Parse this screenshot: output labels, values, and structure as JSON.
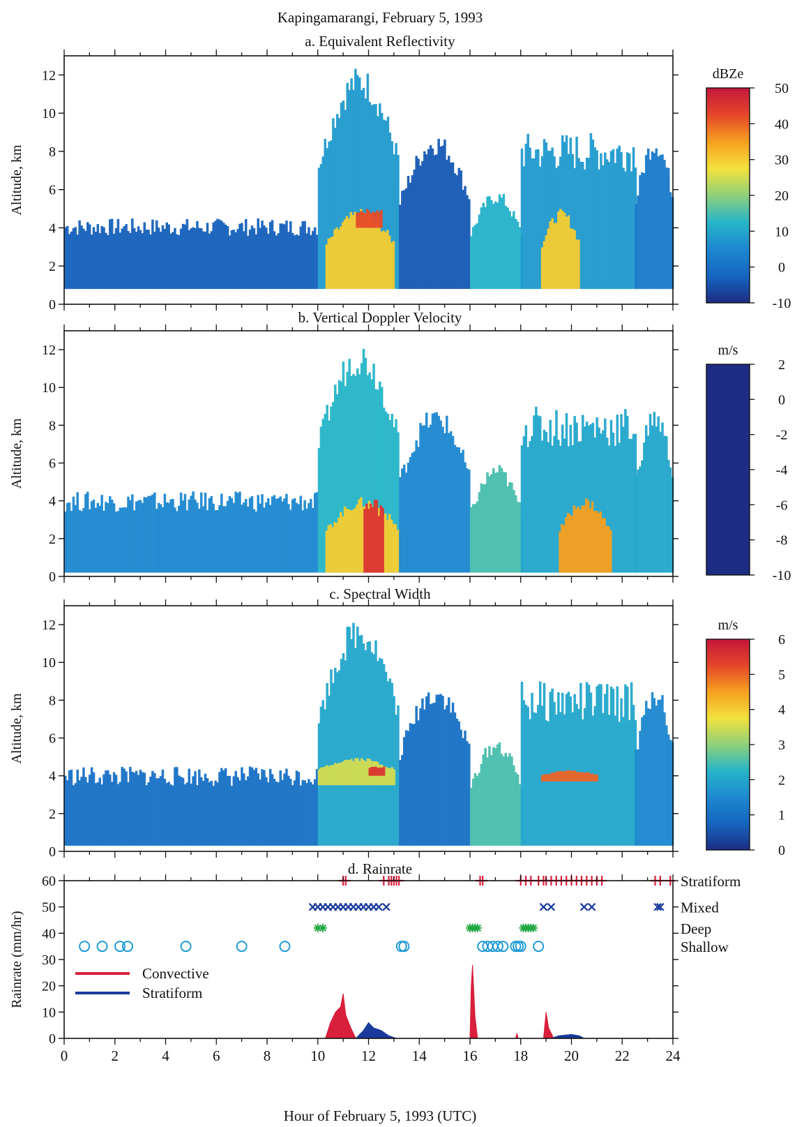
{
  "figure": {
    "title": "Kapingamarangi, February 5, 1993",
    "xlabel": "Hour of February 5, 1993 (UTC)",
    "x_ticks": [
      0,
      2,
      4,
      6,
      8,
      10,
      12,
      14,
      16,
      18,
      20,
      22,
      24
    ],
    "xlim": [
      0,
      24
    ]
  },
  "colors": {
    "convective": "#d81f3b",
    "stratiform": "#1a3a9c",
    "deep": "#22a845",
    "shallow": "#1e9ad6",
    "colormap": [
      "#1d2d84",
      "#1565c0",
      "#1e88d0",
      "#26b5c8",
      "#8fd07a",
      "#f3e23c",
      "#f6a020",
      "#e5462a",
      "#c4163c"
    ]
  },
  "chart_data": [
    {
      "type": "heatmap",
      "title": "a. Equivalent Reflectivity",
      "ylabel": "Altitude, km",
      "y_ticks": [
        0,
        2,
        4,
        6,
        8,
        10,
        12
      ],
      "ylim": [
        0,
        13
      ],
      "xlim": [
        0,
        24
      ],
      "colorbar": {
        "label": "dBZe",
        "min": -10,
        "max": 50,
        "ticks": [
          -10,
          0,
          10,
          20,
          30,
          40,
          50
        ]
      },
      "echo_regions": [
        {
          "x": [
            0,
            10
          ],
          "y": [
            0.8,
            4.5
          ],
          "value": -3
        },
        {
          "x": [
            10,
            13.2
          ],
          "y": [
            0.8,
            12.5
          ],
          "value": 8
        },
        {
          "x": [
            10.3,
            13
          ],
          "y": [
            0.8,
            5
          ],
          "value": 30
        },
        {
          "x": [
            11.5,
            12.5
          ],
          "y": [
            4,
            5
          ],
          "value": 42
        },
        {
          "x": [
            13.2,
            16
          ],
          "y": [
            0.8,
            9
          ],
          "value": -4
        },
        {
          "x": [
            16,
            18
          ],
          "y": [
            0.8,
            6
          ],
          "value": 12
        },
        {
          "x": [
            18,
            22.5
          ],
          "y": [
            0.8,
            9
          ],
          "value": 8
        },
        {
          "x": [
            18.8,
            20.3
          ],
          "y": [
            0.8,
            5
          ],
          "value": 30
        },
        {
          "x": [
            22.5,
            24
          ],
          "y": [
            0.8,
            9
          ],
          "value": 2
        }
      ]
    },
    {
      "type": "heatmap",
      "title": "b. Vertical Doppler Velocity",
      "ylabel": "Altitude, km",
      "y_ticks": [
        0,
        2,
        4,
        6,
        8,
        10,
        12
      ],
      "ylim": [
        0,
        13
      ],
      "xlim": [
        0,
        24
      ],
      "colorbar": {
        "label": "m/s",
        "min": -10,
        "max": 2,
        "ticks": [
          2,
          0,
          -2,
          -4,
          -6,
          -8,
          -10
        ]
      },
      "echo_regions": [
        {
          "x": [
            0,
            10
          ],
          "y": [
            0.2,
            4.5
          ],
          "value": -1
        },
        {
          "x": [
            10,
            13.2
          ],
          "y": [
            0.2,
            12.5
          ],
          "value": -2.5
        },
        {
          "x": [
            10.3,
            13.2
          ],
          "y": [
            0.2,
            4.2
          ],
          "value": -6
        },
        {
          "x": [
            11.8,
            12.6
          ],
          "y": [
            0.2,
            4.2
          ],
          "value": -9
        },
        {
          "x": [
            13.2,
            16
          ],
          "y": [
            0.2,
            9
          ],
          "value": -1
        },
        {
          "x": [
            16,
            18
          ],
          "y": [
            0.2,
            6
          ],
          "value": -3
        },
        {
          "x": [
            18,
            22.5
          ],
          "y": [
            0.2,
            9
          ],
          "value": -2
        },
        {
          "x": [
            19.5,
            21.5
          ],
          "y": [
            0.2,
            4.2
          ],
          "value": -7
        },
        {
          "x": [
            22.5,
            24
          ],
          "y": [
            0.2,
            9
          ],
          "value": -2
        }
      ]
    },
    {
      "type": "heatmap",
      "title": "c. Spectral Width",
      "ylabel": "Altitude, km",
      "y_ticks": [
        0,
        2,
        4,
        6,
        8,
        10,
        12
      ],
      "ylim": [
        0,
        13
      ],
      "xlim": [
        0,
        24
      ],
      "colorbar": {
        "label": "m/s",
        "min": 0,
        "max": 6,
        "ticks": [
          0,
          1,
          2,
          3,
          4,
          5,
          6
        ]
      },
      "echo_regions": [
        {
          "x": [
            0,
            10
          ],
          "y": [
            0.3,
            4.5
          ],
          "value": 1
        },
        {
          "x": [
            10,
            13.2
          ],
          "y": [
            0.3,
            12.5
          ],
          "value": 2
        },
        {
          "x": [
            10,
            13
          ],
          "y": [
            3.5,
            5
          ],
          "value": 3.5
        },
        {
          "x": [
            12,
            12.6
          ],
          "y": [
            4,
            4.5
          ],
          "value": 5.5
        },
        {
          "x": [
            13.2,
            16
          ],
          "y": [
            0.3,
            9
          ],
          "value": 1
        },
        {
          "x": [
            16,
            18
          ],
          "y": [
            0.3,
            6
          ],
          "value": 2.5
        },
        {
          "x": [
            18,
            22.5
          ],
          "y": [
            0.3,
            9
          ],
          "value": 2
        },
        {
          "x": [
            18.8,
            21
          ],
          "y": [
            3.7,
            4.3
          ],
          "value": 5
        },
        {
          "x": [
            22.5,
            24
          ],
          "y": [
            0.3,
            9
          ],
          "value": 1.5
        }
      ]
    },
    {
      "type": "area",
      "title": "d. Rainrate",
      "ylabel": "Rainrate (mm/hr)",
      "y_ticks": [
        0,
        10,
        20,
        30,
        40,
        50,
        60
      ],
      "ylim": [
        0,
        60
      ],
      "xlim": [
        0,
        24
      ],
      "legend": {
        "placement": "lower-left",
        "entries": [
          "Convective",
          "Stratiform"
        ]
      },
      "series": [
        {
          "name": "Convective",
          "x": [
            10.3,
            10.5,
            10.7,
            10.9,
            11.0,
            11.1,
            11.3,
            11.5,
            16.0,
            16.05,
            16.1,
            16.2,
            16.3,
            17.8,
            17.85,
            17.9,
            18.9,
            19.0,
            19.1,
            19.3
          ],
          "y": [
            0,
            6,
            10,
            12,
            17,
            9,
            4,
            0,
            0,
            20,
            28,
            8,
            0,
            0,
            2,
            0,
            0,
            10,
            4,
            0
          ]
        },
        {
          "name": "Stratiform",
          "x": [
            11.5,
            11.8,
            12.0,
            12.2,
            12.5,
            12.8,
            13.1,
            16.3,
            16.8,
            19.2,
            19.5,
            20.0,
            20.3,
            20.5
          ],
          "y": [
            0,
            3,
            6,
            4,
            3,
            1,
            0,
            0,
            0,
            0,
            1,
            1.5,
            1,
            0
          ]
        }
      ],
      "classification": [
        {
          "name": "Stratiform",
          "y": 60,
          "marker": "+",
          "x": [
            11.0,
            11.1,
            12.6,
            12.8,
            12.9,
            13.0,
            13.1,
            13.2,
            16.4,
            16.5,
            18.0,
            18.2,
            18.4,
            18.7,
            18.9,
            19.0,
            19.2,
            19.4,
            19.6,
            19.8,
            20.0,
            20.2,
            20.4,
            20.6,
            20.8,
            21.0,
            21.2,
            23.3,
            23.5,
            23.9
          ]
        },
        {
          "name": "Mixed",
          "y": 50,
          "marker": "x",
          "x": [
            9.8,
            10.0,
            10.2,
            10.4,
            10.6,
            10.8,
            11.0,
            11.2,
            11.4,
            11.6,
            11.8,
            12.0,
            12.2,
            12.4,
            12.7,
            18.9,
            19.2,
            20.5,
            20.8,
            23.4,
            23.5
          ]
        },
        {
          "name": "Deep",
          "y": 42,
          "marker": "*",
          "x": [
            10.0,
            10.2,
            16.0,
            16.1,
            16.2,
            16.3,
            18.1,
            18.2,
            18.3,
            18.4,
            18.5
          ]
        },
        {
          "name": "Shallow",
          "y": 35,
          "marker": "o",
          "x": [
            0.8,
            1.5,
            2.2,
            2.5,
            4.8,
            7.0,
            8.7,
            13.3,
            13.4,
            16.5,
            16.7,
            16.9,
            17.1,
            17.3,
            17.8,
            17.9,
            18.0,
            18.7
          ]
        }
      ]
    }
  ]
}
